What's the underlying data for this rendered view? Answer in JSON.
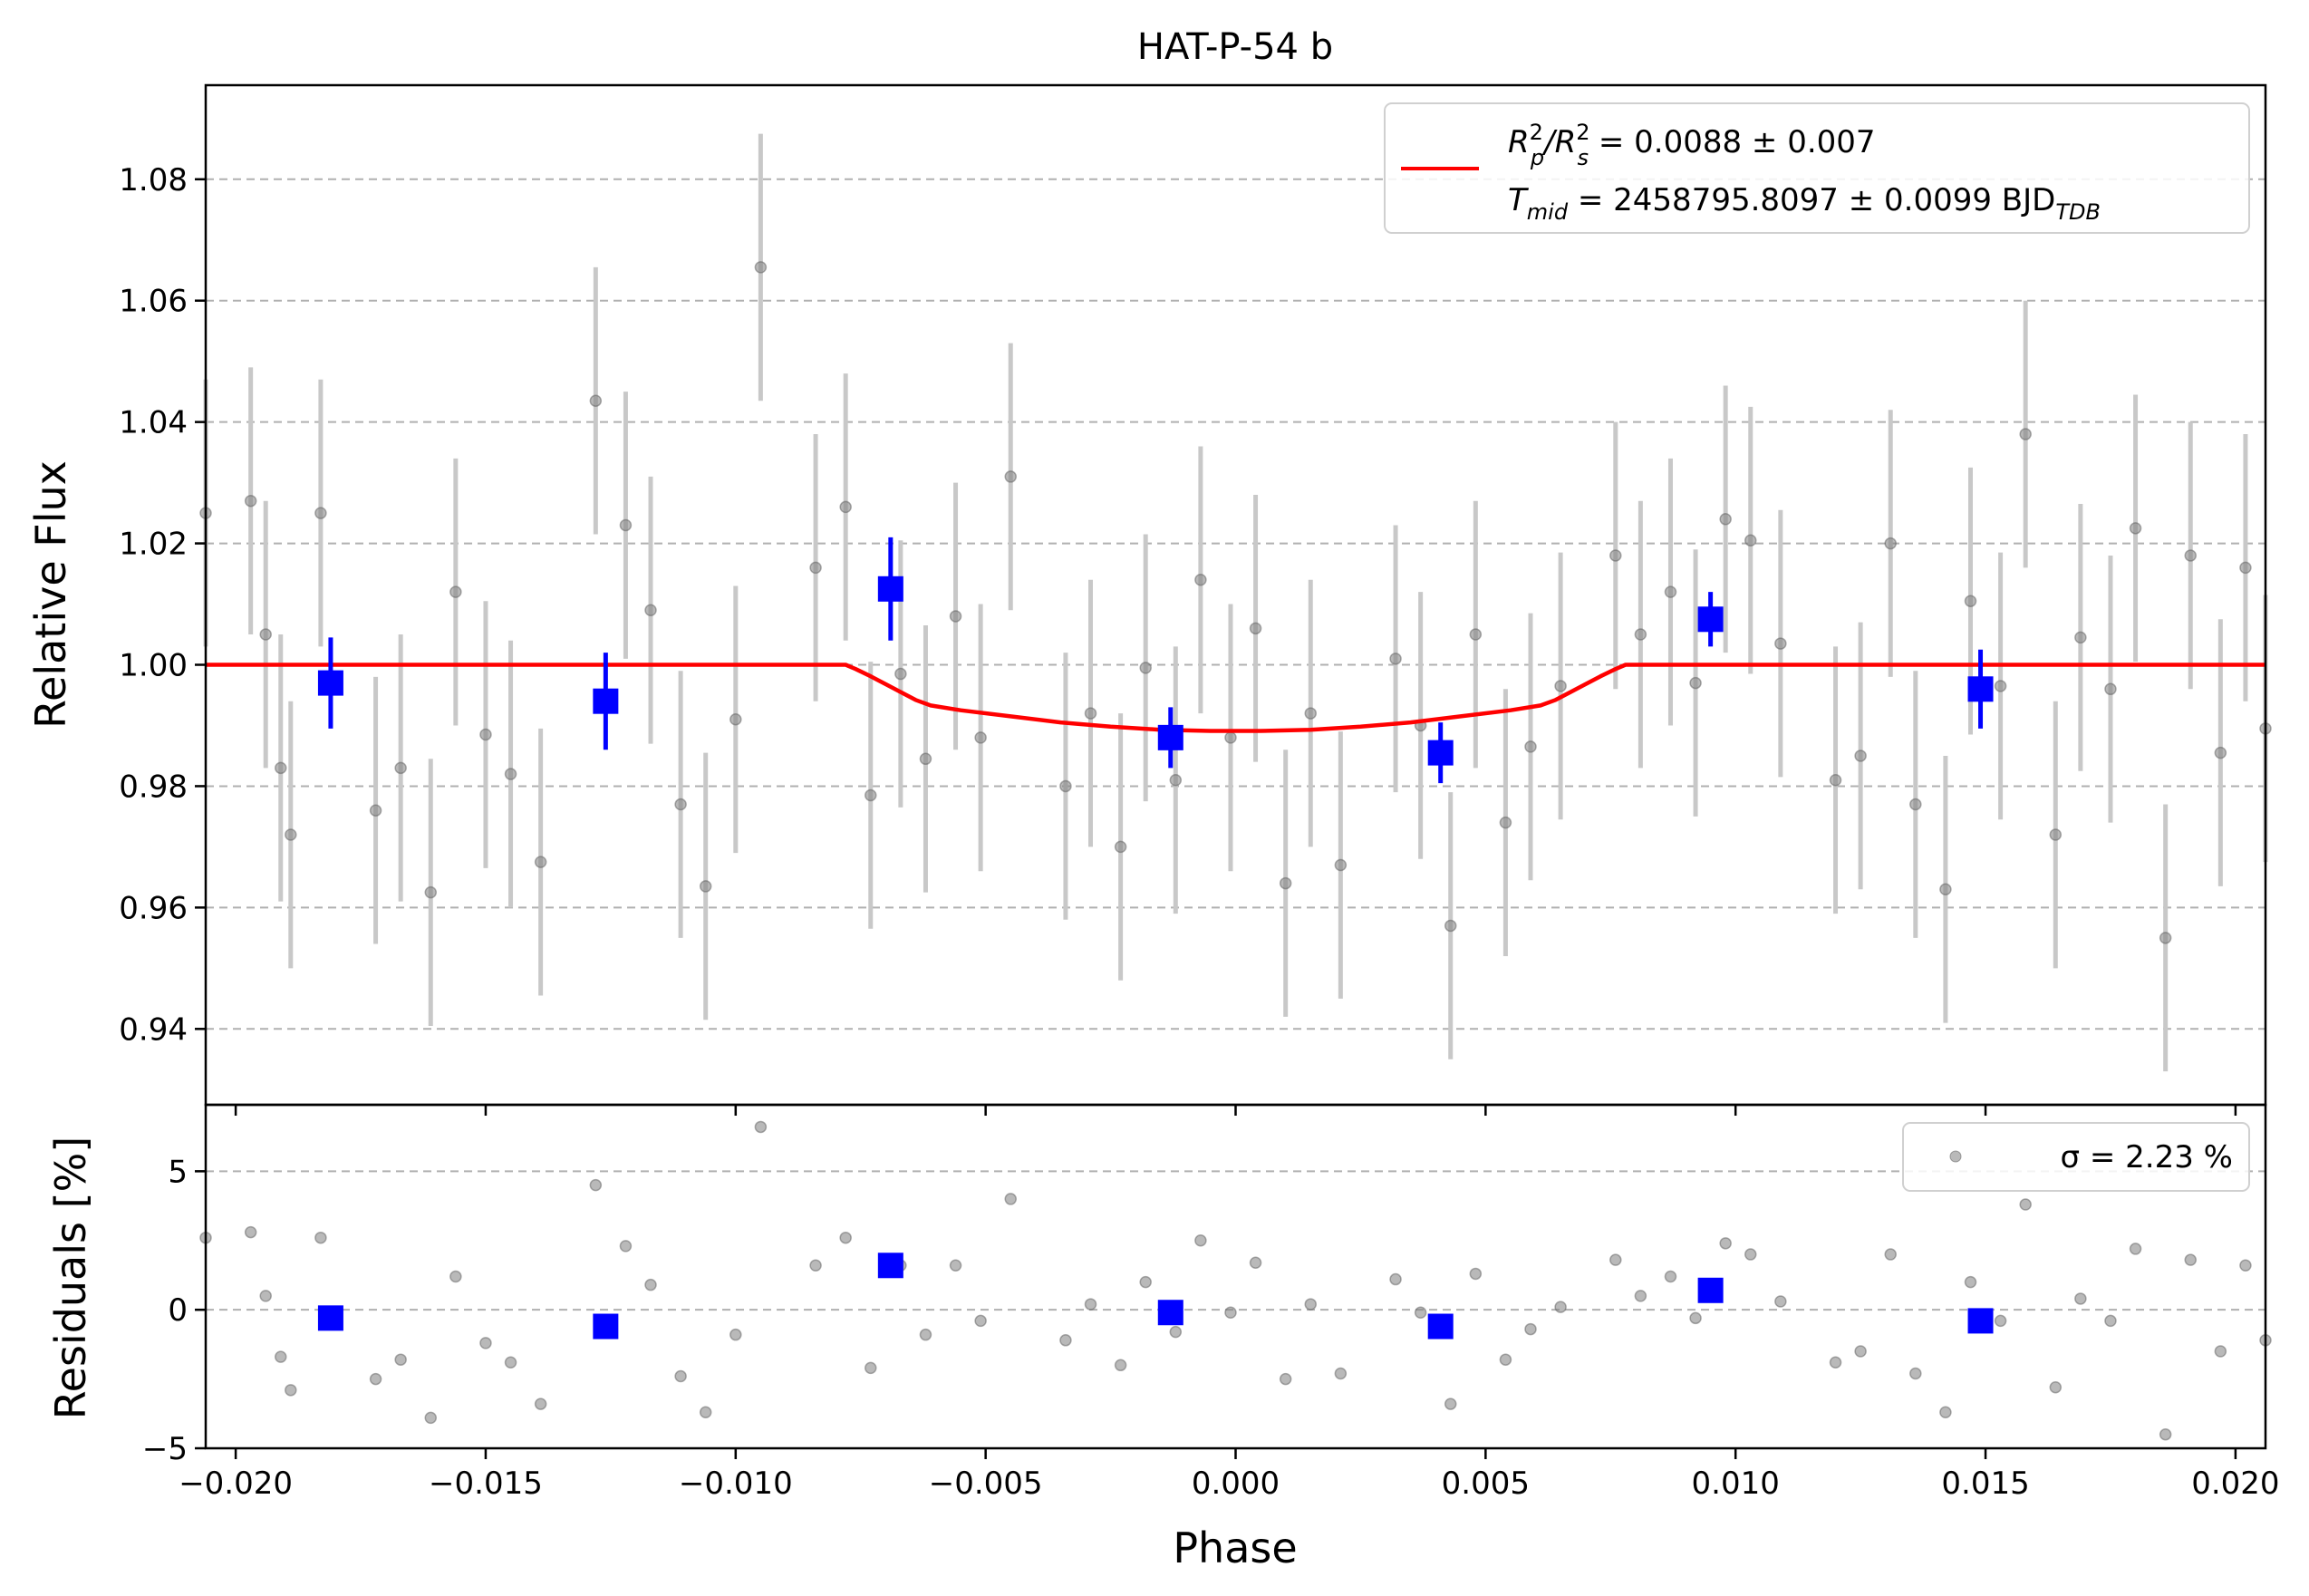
{
  "chart_data": [
    {
      "type": "scatter",
      "title": "HAT-P-54 b",
      "xlabel": "",
      "ylabel": "Relative Flux",
      "xlim": [
        -0.0206,
        0.0206
      ],
      "ylim": [
        0.9275,
        1.0955
      ],
      "xticks": [
        -0.02,
        -0.015,
        -0.01,
        -0.005,
        0.0,
        0.005,
        0.01,
        0.015,
        0.02
      ],
      "xtick_labels": [
        "",
        "",
        "",
        "",
        "",
        "",
        "",
        "",
        ""
      ],
      "yticks": [
        0.94,
        0.96,
        0.98,
        1.0,
        1.02,
        1.04,
        1.06,
        1.08
      ],
      "ytick_labels": [
        "0.94",
        "0.96",
        "0.98",
        "1.00",
        "1.02",
        "1.04",
        "1.06",
        "1.08"
      ],
      "grid": "horizontal dashed",
      "legend_position": "top-right",
      "colors": {
        "raw": "#808080",
        "errorbar": "#c8c8c8",
        "binned": "#0000ff",
        "model": "#ff0000"
      },
      "series": [
        {
          "name": "",
          "style": "raw",
          "x": [
            -0.0206,
            -0.0197,
            -0.0194,
            -0.0191,
            -0.0189,
            -0.0183,
            -0.0172,
            -0.0167,
            -0.0161,
            -0.0156,
            -0.015,
            -0.0145,
            -0.0139,
            -0.0128,
            -0.0122,
            -0.0117,
            -0.0111,
            -0.0106,
            -0.01,
            -0.0095,
            -0.0084,
            -0.0078,
            -0.0073,
            -0.0067,
            -0.0062,
            -0.0056,
            -0.0051,
            -0.0045,
            -0.0034,
            -0.0029,
            -0.0023,
            -0.0018,
            -0.0012,
            -0.0007,
            -0.0001,
            0.0004,
            0.001,
            0.0015,
            0.0021,
            0.0032,
            0.0037,
            0.0043,
            0.0048,
            0.0054,
            0.0059,
            0.0065,
            0.0076,
            0.0081,
            0.0087,
            0.0092,
            0.0098,
            0.0103,
            0.0109,
            0.012,
            0.0125,
            0.0131,
            0.0136,
            0.0142,
            0.0147,
            0.0153,
            0.0158,
            0.0164,
            0.0169,
            0.0175,
            0.018,
            0.0186,
            0.0191,
            0.0197,
            0.0202,
            0.0206
          ],
          "y": [
            1.025,
            1.027,
            1.005,
            0.983,
            0.972,
            1.025,
            0.976,
            0.983,
            0.9625,
            1.012,
            0.9885,
            0.982,
            0.9675,
            1.0435,
            1.023,
            1.009,
            0.977,
            0.9635,
            0.991,
            1.0655,
            1.016,
            1.026,
            0.9785,
            0.9985,
            0.9845,
            1.008,
            0.988,
            1.031,
            0.98,
            0.992,
            0.97,
            0.9995,
            0.981,
            1.014,
            0.988,
            1.006,
            0.964,
            0.992,
            0.967,
            1.001,
            0.99,
            0.957,
            1.005,
            0.974,
            0.9865,
            0.9965,
            1.018,
            1.005,
            1.012,
            0.997,
            1.024,
            1.0205,
            1.0035,
            0.981,
            0.985,
            1.02,
            0.977,
            0.963,
            1.0105,
            0.9965,
            1.038,
            0.972,
            1.0045,
            0.996,
            1.0225,
            0.955,
            1.018,
            0.9855,
            1.016,
            0.9895
          ],
          "yerr": [
            0.022,
            0.022,
            0.022,
            0.022,
            0.022,
            0.022,
            0.022,
            0.022,
            0.022,
            0.022,
            0.022,
            0.022,
            0.022,
            0.022,
            0.022,
            0.022,
            0.022,
            0.022,
            0.022,
            0.022,
            0.022,
            0.022,
            0.022,
            0.022,
            0.022,
            0.022,
            0.022,
            0.022,
            0.022,
            0.022,
            0.022,
            0.022,
            0.022,
            0.022,
            0.022,
            0.022,
            0.022,
            0.022,
            0.022,
            0.022,
            0.022,
            0.022,
            0.022,
            0.022,
            0.022,
            0.022,
            0.022,
            0.022,
            0.022,
            0.022,
            0.022,
            0.022,
            0.022,
            0.022,
            0.022,
            0.022,
            0.022,
            0.022,
            0.022,
            0.022,
            0.022,
            0.022,
            0.022,
            0.022,
            0.022,
            0.022,
            0.022,
            0.022,
            0.022,
            0.022
          ]
        },
        {
          "name": "",
          "style": "binned",
          "x": [
            -0.0181,
            -0.0126,
            -0.0069,
            -0.0013,
            0.0041,
            0.0095,
            0.0149
          ],
          "y": [
            0.997,
            0.994,
            1.0125,
            0.988,
            0.9855,
            1.0075,
            0.996
          ],
          "yerr": [
            0.0075,
            0.008,
            0.0085,
            0.005,
            0.005,
            0.0045,
            0.0065
          ]
        },
        {
          "name": "R_p^2/R_s^2 = 0.0088 ± 0.007 | T_mid = 2458795.8097 ± 0.0099 BJD_TDB",
          "style": "model",
          "type": "line",
          "x": [
            -0.0206,
            -0.0078,
            -0.0076,
            -0.0073,
            -0.007,
            -0.0067,
            -0.0064,
            -0.0061,
            -0.0055,
            -0.0045,
            -0.0035,
            -0.0025,
            -0.0015,
            -0.0005,
            0.0005,
            0.0015,
            0.0025,
            0.0035,
            0.0045,
            0.0055,
            0.0061,
            0.0064,
            0.0067,
            0.007,
            0.0073,
            0.0076,
            0.0078,
            0.0206
          ],
          "y": [
            1.0,
            1.0,
            0.9993,
            0.9981,
            0.9968,
            0.9955,
            0.9942,
            0.9933,
            0.9925,
            0.9915,
            0.9905,
            0.9898,
            0.9893,
            0.9891,
            0.9891,
            0.9893,
            0.9898,
            0.9905,
            0.9915,
            0.9925,
            0.9933,
            0.9942,
            0.9955,
            0.9968,
            0.9981,
            0.9993,
            1.0,
            1.0
          ]
        }
      ],
      "legend": {
        "line1_main": "R",
        "line1_sup1": "2",
        "line1_sub1": "p",
        "line1_slash": "/R",
        "line1_sup2": "2",
        "line1_sub2": "s",
        "line1_rest": " = 0.0088 ± 0.007",
        "line2_main": "T",
        "line2_sub": "mid",
        "line2_rest": " = 2458795.8097 ± 0.0099 BJD",
        "line2_sub2": "TDB"
      }
    },
    {
      "type": "scatter",
      "title": "",
      "xlabel": "Phase",
      "ylabel": "Residuals [%]",
      "xlim": [
        -0.0206,
        0.0206
      ],
      "ylim": [
        -5,
        7.4
      ],
      "xticks": [
        -0.02,
        -0.015,
        -0.01,
        -0.005,
        0.0,
        0.005,
        0.01,
        0.015,
        0.02
      ],
      "xtick_labels": [
        "−0.020",
        "−0.015",
        "−0.010",
        "−0.005",
        "0.000",
        "0.005",
        "0.010",
        "0.015",
        "0.020"
      ],
      "yticks": [
        -5,
        0,
        5
      ],
      "ytick_labels": [
        "−5",
        "0",
        "5"
      ],
      "grid": "horizontal dashed",
      "legend_position": "top-right",
      "legend_text": "σ = 2.23 %",
      "series": [
        {
          "name": "",
          "style": "raw",
          "x": [
            -0.0206,
            -0.0197,
            -0.0194,
            -0.0191,
            -0.0189,
            -0.0183,
            -0.0172,
            -0.0167,
            -0.0161,
            -0.0156,
            -0.015,
            -0.0145,
            -0.0139,
            -0.0128,
            -0.0122,
            -0.0117,
            -0.0111,
            -0.0106,
            -0.01,
            -0.0095,
            -0.0084,
            -0.0078,
            -0.0073,
            -0.0067,
            -0.0062,
            -0.0056,
            -0.0051,
            -0.0045,
            -0.0034,
            -0.0029,
            -0.0023,
            -0.0018,
            -0.0012,
            -0.0007,
            -0.0001,
            0.0004,
            0.001,
            0.0015,
            0.0021,
            0.0032,
            0.0037,
            0.0043,
            0.0048,
            0.0054,
            0.0059,
            0.0065,
            0.0076,
            0.0081,
            0.0087,
            0.0092,
            0.0098,
            0.0103,
            0.0109,
            0.012,
            0.0125,
            0.0131,
            0.0136,
            0.0142,
            0.0147,
            0.0153,
            0.0158,
            0.0164,
            0.0169,
            0.0175,
            0.018,
            0.0186,
            0.0191,
            0.0197,
            0.0202,
            0.0206
          ],
          "y": [
            2.6,
            2.8,
            0.5,
            -1.7,
            -2.9,
            2.6,
            -2.5,
            -1.8,
            -3.9,
            1.2,
            -1.2,
            -1.9,
            -3.4,
            4.5,
            2.3,
            0.9,
            -2.4,
            -3.7,
            -0.9,
            6.6,
            1.6,
            2.6,
            -2.1,
            1.6,
            -0.9,
            1.6,
            -0.4,
            4.0,
            -1.1,
            0.2,
            -2.0,
            1.0,
            -0.8,
            2.5,
            -0.1,
            1.7,
            -2.5,
            0.2,
            -2.3,
            1.1,
            -0.1,
            -3.4,
            1.3,
            -1.8,
            -0.7,
            0.1,
            1.8,
            0.5,
            1.2,
            -0.3,
            2.4,
            2.0,
            0.3,
            -1.9,
            -1.5,
            2.0,
            -2.3,
            -3.7,
            1.0,
            -0.4,
            3.8,
            -2.8,
            0.4,
            -0.4,
            2.2,
            -4.5,
            1.8,
            -1.5,
            1.6,
            -1.1
          ]
        },
        {
          "name": "",
          "style": "binned",
          "x": [
            -0.0181,
            -0.0126,
            -0.0069,
            -0.0013,
            0.0041,
            0.0095,
            0.0149
          ],
          "y": [
            -0.3,
            -0.6,
            1.6,
            -0.1,
            -0.6,
            0.7,
            -0.4
          ]
        }
      ]
    }
  ]
}
